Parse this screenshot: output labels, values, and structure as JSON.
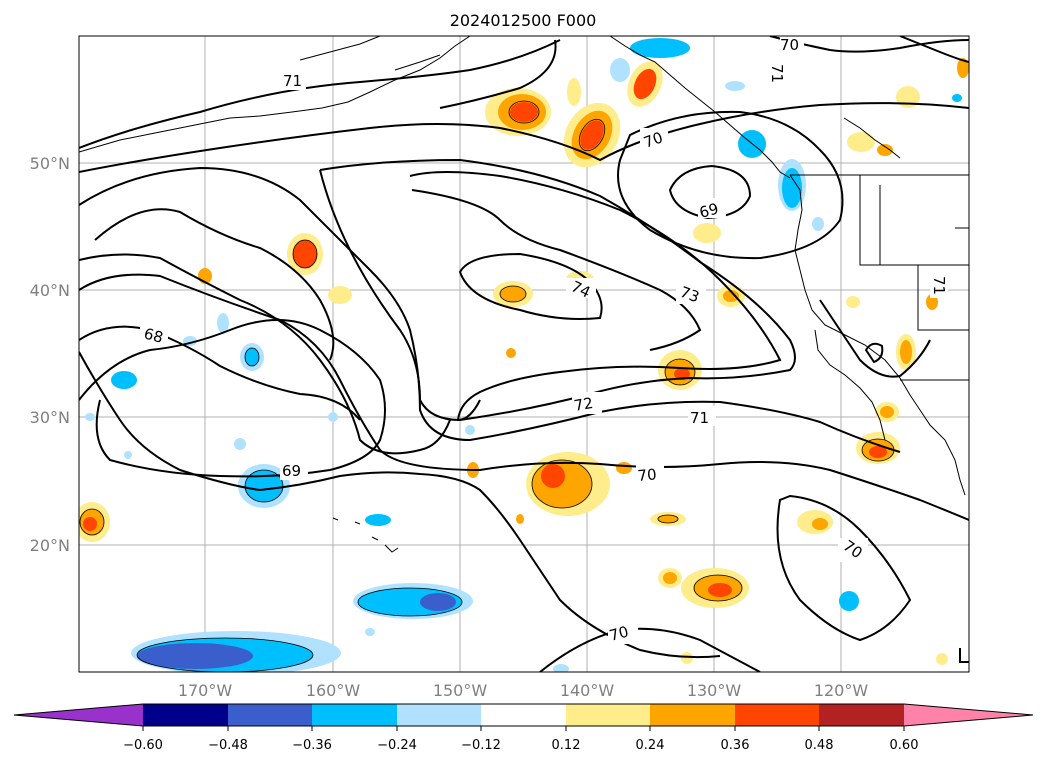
{
  "title": "2024012500 F000",
  "map": {
    "lat_labels": [
      "50°N",
      "40°N",
      "30°N",
      "20°N"
    ],
    "lon_labels": [
      "170°W",
      "160°W",
      "150°W",
      "140°W",
      "130°W",
      "120°W"
    ],
    "gridlines": true
  },
  "contours": {
    "color": "#000000",
    "labels": [
      "71",
      "70",
      "71",
      "70",
      "69",
      "74",
      "73",
      "68",
      "72",
      "71",
      "69",
      "70",
      "70",
      "70",
      "71"
    ]
  },
  "colorbar": {
    "ticks": [
      "−0.60",
      "−0.48",
      "−0.36",
      "−0.24",
      "−0.12",
      "0.12",
      "0.24",
      "0.36",
      "0.48",
      "0.60"
    ],
    "colors": [
      "#9932cc",
      "#00008b",
      "#3a5fcd",
      "#00bfff",
      "#b0e2ff",
      "#ffffff",
      "#ffec8b",
      "#ffa500",
      "#ff4500",
      "#b22222",
      "#ff82ab"
    ]
  }
}
